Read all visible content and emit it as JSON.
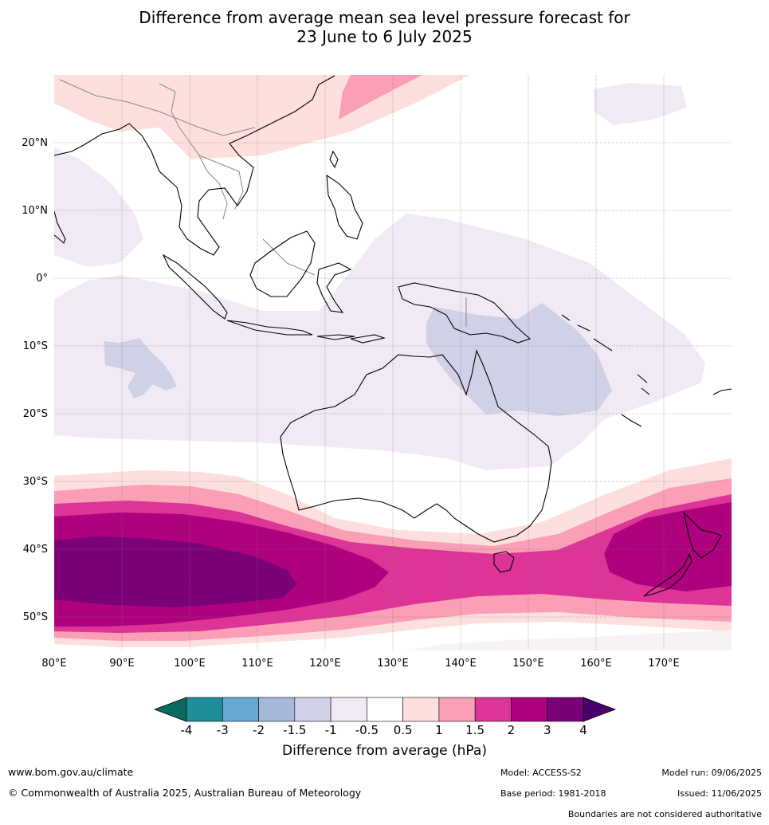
{
  "title": {
    "line1": "Difference from average mean sea level pressure forecast for",
    "line2": "23 June to 6 July 2025"
  },
  "map": {
    "extent": {
      "lon": [
        80,
        180
      ],
      "lat": [
        -55,
        30
      ]
    },
    "lon_ticks": [
      "80°E",
      "90°E",
      "100°E",
      "110°E",
      "120°E",
      "130°E",
      "140°E",
      "150°E",
      "160°E",
      "170°E"
    ],
    "lat_ticks": [
      "20°N",
      "10°N",
      "0°",
      "10°S",
      "20°S",
      "30°S",
      "40°S",
      "50°S"
    ]
  },
  "colorbar": {
    "label": "Difference from average (hPa)",
    "ticks": [
      "-4",
      "-3",
      "-2",
      "-1.5",
      "-1",
      "-0.5",
      "0.5",
      "1",
      "1.5",
      "2",
      "3",
      "4"
    ],
    "colors": [
      "#0b6a5e",
      "#1e8e99",
      "#66a9d1",
      "#a6b8d8",
      "#d0d1e6",
      "#f1eaf4",
      "#ffffff",
      "#fde0dd",
      "#fa9fb5",
      "#dd3497",
      "#ae017e",
      "#7a0177",
      "#49006a"
    ]
  },
  "footer": {
    "url": "www.bom.gov.au/climate",
    "copyright": "© Commonwealth of Australia 2025, Australian Bureau of Meteorology",
    "model": "Model: ACCESS-S2",
    "base_period": "Base period: 1981-2018",
    "model_run": "Model run: 09/06/2025",
    "issued": "Issued: 11/06/2025",
    "boundaries_note": "Boundaries are not considered authoritative"
  }
}
